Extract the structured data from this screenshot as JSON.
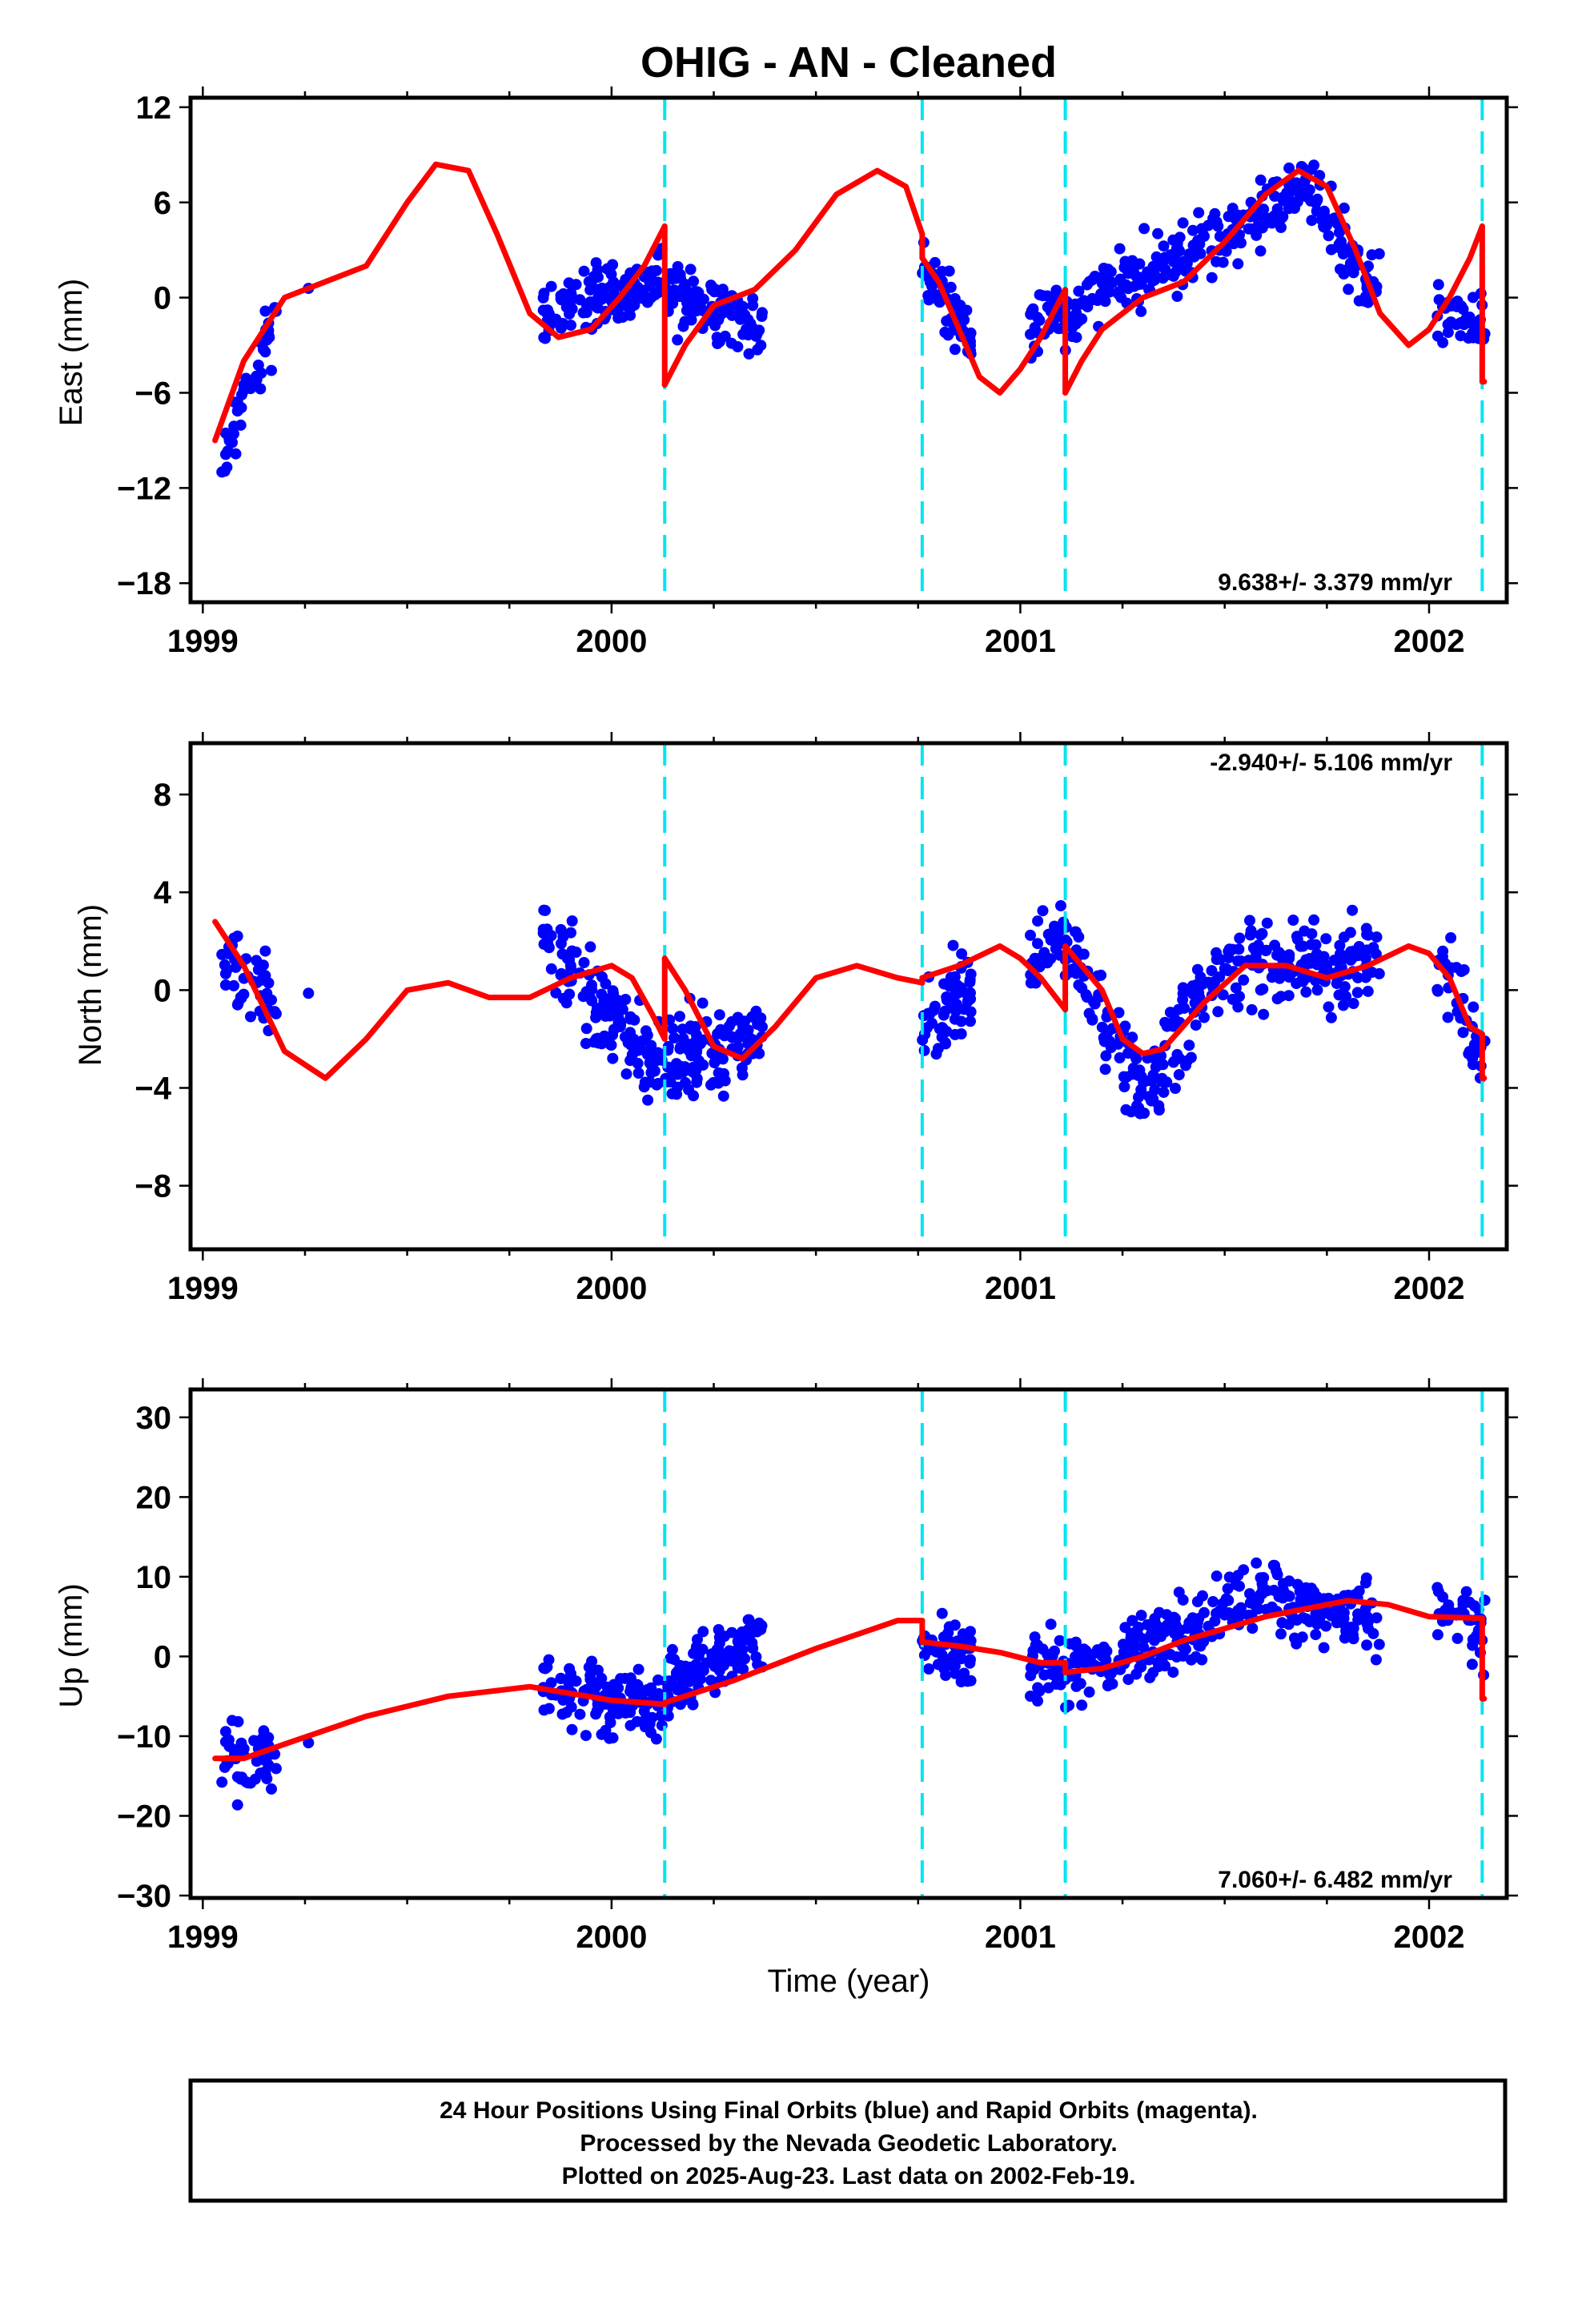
{
  "chart_data": {
    "type": "scatter",
    "title": "OHIG  - AN - Cleaned",
    "xlabel": "Time (year)",
    "xlim": [
      1998.97,
      2002.19
    ],
    "x_ticks": [
      1999,
      2000,
      2001,
      2002
    ],
    "x_tick_labels": [
      "1999",
      "2000",
      "2001",
      "2002"
    ],
    "vertical_dashed_lines_x": [
      2000.13,
      2000.76,
      2001.11,
      2002.13
    ],
    "colors": {
      "observations": "#0000ff",
      "model": "#ff0000",
      "offset_lines": "#00e5f0"
    },
    "panels": [
      {
        "name": "east",
        "ylabel": "East (mm)",
        "ylim": [
          -19.2,
          12.6
        ],
        "y_ticks": [
          12,
          6,
          0,
          -6,
          -12,
          -18
        ],
        "y_tick_labels": [
          "12",
          "6",
          "0",
          "−6",
          "−12",
          "−18"
        ],
        "rate_text": "9.638+/- 3.379 mm/yr",
        "rate_position": "bottom-right",
        "model_segments": [
          {
            "x": [
              1999.03,
              1999.1,
              1999.2,
              1999.3,
              1999.4,
              1999.5,
              1999.57,
              1999.65,
              1999.72,
              1999.8,
              1999.87,
              1999.95,
              2000.02,
              2000.08,
              2000.13
            ],
            "y": [
              -9,
              -4,
              0,
              1,
              2,
              6,
              8.4,
              8,
              4,
              -1,
              -2.5,
              -2,
              0,
              2,
              4.5
            ]
          },
          {
            "x": [
              2000.13,
              2000.18,
              2000.25,
              2000.35,
              2000.45,
              2000.55,
              2000.65,
              2000.72,
              2000.76
            ],
            "y": [
              -5.5,
              -3,
              -0.5,
              0.5,
              3,
              6.5,
              8,
              7,
              4
            ]
          },
          {
            "x": [
              2000.76,
              2000.8,
              2000.85,
              2000.9,
              2000.95,
              2001.0,
              2001.05,
              2001.11
            ],
            "y": [
              2.5,
              1,
              -2,
              -5,
              -6,
              -4.5,
              -2.5,
              0.5
            ]
          },
          {
            "x": [
              2001.11,
              2001.15,
              2001.2,
              2001.3,
              2001.4,
              2001.5,
              2001.6,
              2001.68,
              2001.75,
              2001.82,
              2001.88,
              2001.95,
              2002.0,
              2002.05,
              2002.1,
              2002.13
            ],
            "y": [
              -6,
              -4,
              -2,
              0,
              1,
              3.5,
              6.5,
              8,
              7,
              3,
              -1,
              -3,
              -2,
              0,
              2.5,
              4.5
            ]
          },
          {
            "x": [
              2002.13,
              2002.135
            ],
            "y": [
              -5.3,
              -5.3
            ]
          }
        ]
      },
      {
        "name": "north",
        "ylabel": "North (mm)",
        "ylim": [
          -10.6,
          10.1
        ],
        "y_ticks": [
          8,
          4,
          0,
          -4,
          -8
        ],
        "y_tick_labels": [
          "8",
          "4",
          "0",
          "−4",
          "−8"
        ],
        "rate_text": "-2.940+/- 5.106 mm/yr",
        "rate_position": "top-right",
        "model_segments": [
          {
            "x": [
              1999.03,
              1999.1,
              1999.2,
              1999.3,
              1999.4,
              1999.5,
              1999.6,
              1999.7,
              1999.8,
              1999.9,
              2000.0,
              2000.05,
              2000.1,
              2000.13
            ],
            "y": [
              2.8,
              1,
              -2.5,
              -3.6,
              -2,
              0,
              0.3,
              -0.3,
              -0.3,
              0.5,
              1,
              0.5,
              -1,
              -2
            ]
          },
          {
            "x": [
              2000.13,
              2000.18,
              2000.25,
              2000.32,
              2000.4,
              2000.5,
              2000.6,
              2000.7,
              2000.76
            ],
            "y": [
              1.3,
              0,
              -2.3,
              -2.8,
              -1.5,
              0.5,
              1,
              0.5,
              0.3
            ]
          },
          {
            "x": [
              2000.76,
              2000.85,
              2000.95,
              2001.0,
              2001.05,
              2001.11
            ],
            "y": [
              0.5,
              1,
              1.8,
              1.3,
              0.5,
              -0.8
            ]
          },
          {
            "x": [
              2001.11,
              2001.15,
              2001.2,
              2001.25,
              2001.3,
              2001.35,
              2001.45,
              2001.55,
              2001.65,
              2001.75,
              2001.85,
              2001.95,
              2002.0,
              2002.05,
              2002.1,
              2002.13
            ],
            "y": [
              1.8,
              1,
              0,
              -2,
              -2.6,
              -2.4,
              -0.5,
              1,
              1,
              0.5,
              1,
              1.8,
              1.5,
              0.5,
              -1.5,
              -1.8
            ]
          },
          {
            "x": [
              2002.13,
              2002.135
            ],
            "y": [
              -3.6,
              -3.6
            ]
          }
        ]
      },
      {
        "name": "up",
        "ylabel": "Up (mm)",
        "ylim": [
          -30.3,
          33.5
        ],
        "y_ticks": [
          30,
          20,
          10,
          0,
          -10,
          -20,
          -30
        ],
        "y_tick_labels": [
          "30",
          "20",
          "10",
          "0",
          "−10",
          "−20",
          "−30"
        ],
        "rate_text": "7.060+/- 6.482 mm/yr",
        "rate_position": "bottom-right",
        "model_segments": [
          {
            "x": [
              1999.03,
              1999.1,
              1999.2,
              1999.4,
              1999.6,
              1999.8,
              2000.0,
              2000.13
            ],
            "y": [
              -12.8,
              -12.8,
              -11,
              -7.5,
              -5,
              -3.8,
              -5.5,
              -6
            ]
          },
          {
            "x": [
              2000.13,
              2000.3,
              2000.5,
              2000.7,
              2000.76
            ],
            "y": [
              -5.8,
              -3,
              1,
              4.5,
              4.5
            ]
          },
          {
            "x": [
              2000.76,
              2000.85,
              2000.95,
              2001.05,
              2001.11
            ],
            "y": [
              1.8,
              1.3,
              0.5,
              -0.8,
              -0.8
            ]
          },
          {
            "x": [
              2001.11,
              2001.2,
              2001.3,
              2001.4,
              2001.5,
              2001.6,
              2001.7,
              2001.8,
              2001.9,
              2002.0,
              2002.13
            ],
            "y": [
              -2,
              -1.5,
              0,
              2,
              3.5,
              5,
              6,
              7,
              6.5,
              5,
              4.8
            ]
          },
          {
            "x": [
              2002.13,
              2002.135
            ],
            "y": [
              -5.3,
              -5.3
            ]
          }
        ]
      }
    ],
    "points": {
      "description": "daily 24 hour positions",
      "groups": [
        {
          "x_range": [
            1999.03,
            1999.18
          ],
          "count": 45
        },
        {
          "x_range": [
            1999.25,
            1999.26
          ],
          "count": 1
        },
        {
          "x_range": [
            1999.83,
            2000.37
          ],
          "count": 240
        },
        {
          "x_range": [
            2000.76,
            2000.88
          ],
          "count": 60
        },
        {
          "x_range": [
            2001.02,
            2001.88
          ],
          "count": 330
        },
        {
          "x_range": [
            2002.02,
            2002.14
          ],
          "count": 40
        }
      ],
      "east_mean": {
        "x": [
          1999.03,
          1999.1,
          1999.2,
          1999.85,
          2000.1,
          2000.35,
          2000.78,
          2000.88,
          2001.1,
          2001.5,
          2001.7,
          2001.85,
          2002.05,
          2002.13
        ],
        "y": [
          -12,
          -6,
          0,
          -1,
          1,
          -2,
          1,
          -3,
          -1,
          4,
          7,
          1,
          -1,
          -2
        ]
      },
      "north_mean": {
        "x": [
          1999.03,
          1999.1,
          1999.2,
          1999.85,
          2000.1,
          2000.35,
          2000.78,
          2000.88,
          2001.1,
          2001.3,
          2001.5,
          2001.7,
          2001.85,
          2002.05,
          2002.13
        ],
        "y": [
          2,
          0,
          0,
          2,
          -3,
          -2,
          -1,
          0,
          2,
          -4,
          1,
          1,
          1,
          1,
          -3
        ]
      },
      "up_mean": {
        "x": [
          1999.03,
          1999.18,
          1999.85,
          2000.1,
          2000.35,
          2000.78,
          2000.88,
          2001.1,
          2001.3,
          2001.6,
          2001.85,
          2002.05,
          2002.13
        ],
        "y": [
          -14,
          -12,
          -4,
          -6,
          3,
          2,
          0,
          -2,
          1,
          8,
          4,
          6,
          3
        ]
      }
    }
  },
  "caption": {
    "line1": "24 Hour Positions Using Final Orbits (blue) and Rapid Orbits (magenta).",
    "line2": "Processed by the Nevada Geodetic Laboratory.",
    "line3": "Plotted on 2025-Aug-23. Last data on 2002-Feb-19."
  }
}
